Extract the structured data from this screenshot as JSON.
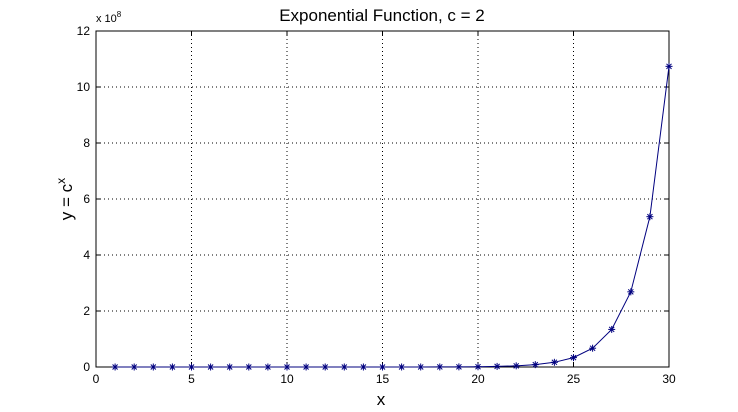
{
  "chart_data": {
    "type": "line",
    "title": "Exponential Function, c = 2",
    "xlabel": "x",
    "ylabel_base": "y = c",
    "ylabel_exponent": "x",
    "y_multiplier_label": "x 10",
    "y_multiplier_exponent": "8",
    "xlim": [
      0,
      30
    ],
    "ylim": [
      0,
      12
    ],
    "x_ticks": [
      0,
      5,
      10,
      15,
      20,
      25,
      30
    ],
    "x_tick_labels": [
      "0",
      "5",
      "10",
      "15",
      "20",
      "25",
      "30"
    ],
    "y_ticks": [
      0,
      2,
      4,
      6,
      8,
      10,
      12
    ],
    "y_tick_labels": [
      "0",
      "2",
      "4",
      "6",
      "8",
      "10",
      "12"
    ],
    "y_scale_note": "y values in units of 10^8",
    "grid": true,
    "line_color": "#00007f",
    "marker": "asterisk",
    "series": [
      {
        "x": [
          1,
          2,
          3,
          4,
          5,
          6,
          7,
          8,
          9,
          10,
          11,
          12,
          13,
          14,
          15,
          16,
          17,
          18,
          19,
          20,
          21,
          22,
          23,
          24,
          25,
          26,
          27,
          28,
          29,
          30
        ],
        "y": [
          2e-08,
          4e-08,
          8e-08,
          1.6e-07,
          3.2e-07,
          6.4e-07,
          1.28e-06,
          2.56e-06,
          5.12e-06,
          1.024e-05,
          2.048e-05,
          4.096e-05,
          8.192e-05,
          0.00016384,
          0.00032768,
          0.00065536,
          0.00131072,
          0.00262144,
          0.00524288,
          0.01048576,
          0.02097152,
          0.04194304,
          0.08388608,
          0.16777216,
          0.33554432,
          0.67108864,
          1.34217728,
          2.68435456,
          5.36870912,
          10.73741824
        ]
      }
    ]
  }
}
